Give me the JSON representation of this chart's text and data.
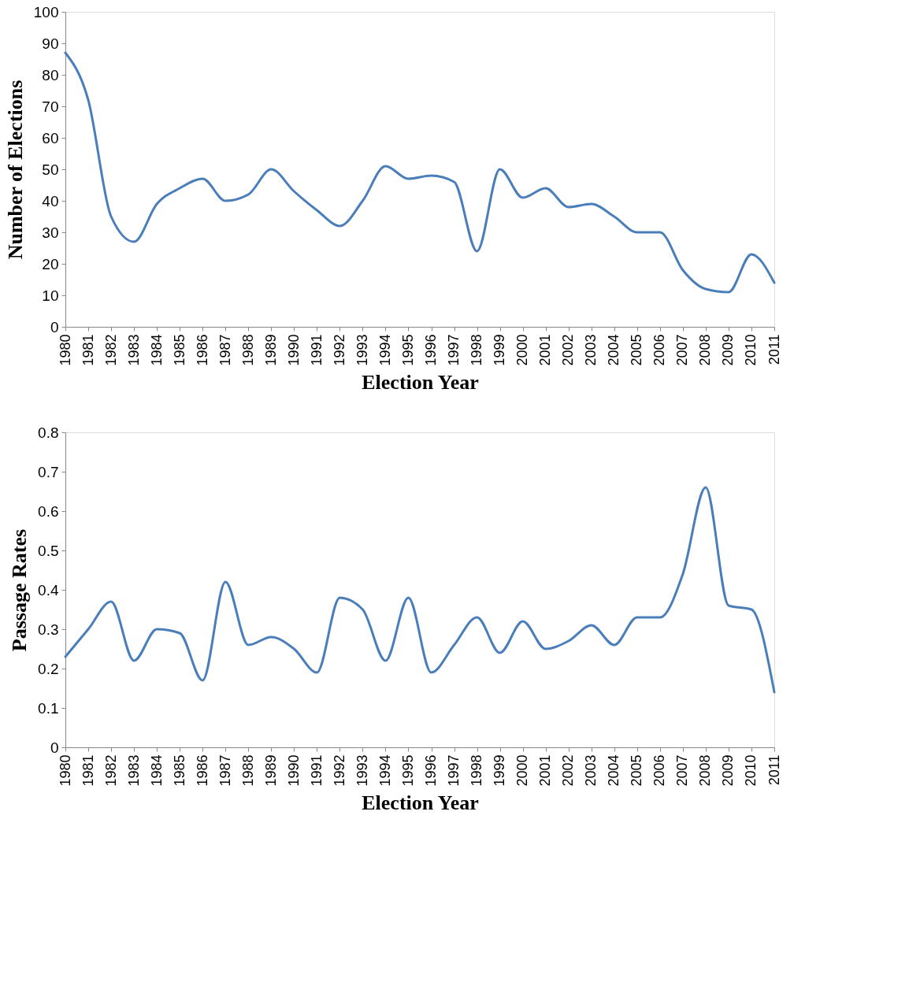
{
  "chart_data": [
    {
      "type": "line",
      "xlabel": "Election Year",
      "ylabel": "Number of Elections",
      "categories": [
        "1980",
        "1981",
        "1982",
        "1983",
        "1984",
        "1985",
        "1986",
        "1987",
        "1988",
        "1989",
        "1990",
        "1991",
        "1992",
        "1993",
        "1994",
        "1995",
        "1996",
        "1997",
        "1998",
        "1999",
        "2000",
        "2001",
        "2002",
        "2003",
        "2004",
        "2005",
        "2006",
        "2007",
        "2008",
        "2009",
        "2010",
        "2011"
      ],
      "series": [
        {
          "color": "#4a7ebb",
          "values": [
            87,
            72,
            35,
            27,
            39,
            44,
            47,
            40,
            42,
            50,
            43,
            37,
            32,
            40,
            51,
            47,
            48,
            46,
            24,
            50,
            41,
            44,
            38,
            39,
            35,
            30,
            30,
            18,
            12,
            11,
            23,
            14
          ]
        }
      ],
      "ylim": [
        0,
        100
      ],
      "yticks": [
        0,
        10,
        20,
        30,
        40,
        50,
        60,
        70,
        80,
        90,
        100
      ],
      "grid": false,
      "marker": "none",
      "line_style": "solid"
    },
    {
      "type": "line",
      "xlabel": "Election Year",
      "ylabel": "Passage Rates",
      "categories": [
        "1980",
        "1981",
        "1982",
        "1983",
        "1984",
        "1985",
        "1986",
        "1987",
        "1988",
        "1989",
        "1990",
        "1991",
        "1992",
        "1993",
        "1994",
        "1995",
        "1996",
        "1997",
        "1998",
        "1999",
        "2000",
        "2001",
        "2002",
        "2003",
        "2004",
        "2005",
        "2006",
        "2007",
        "2008",
        "2009",
        "2010",
        "2011"
      ],
      "series": [
        {
          "color": "#4a7ebb",
          "values": [
            0.23,
            0.3,
            0.37,
            0.22,
            0.3,
            0.29,
            0.17,
            0.42,
            0.26,
            0.28,
            0.25,
            0.19,
            0.38,
            0.35,
            0.22,
            0.38,
            0.19,
            0.26,
            0.33,
            0.24,
            0.32,
            0.25,
            0.27,
            0.31,
            0.26,
            0.33,
            0.33,
            0.44,
            0.66,
            0.36,
            0.35,
            0.14
          ]
        }
      ],
      "ylim": [
        0,
        0.8
      ],
      "yticks": [
        0,
        0.1,
        0.2,
        0.3,
        0.4,
        0.5,
        0.6,
        0.7,
        0.8
      ],
      "grid": false,
      "marker": "none",
      "line_style": "solid"
    }
  ]
}
